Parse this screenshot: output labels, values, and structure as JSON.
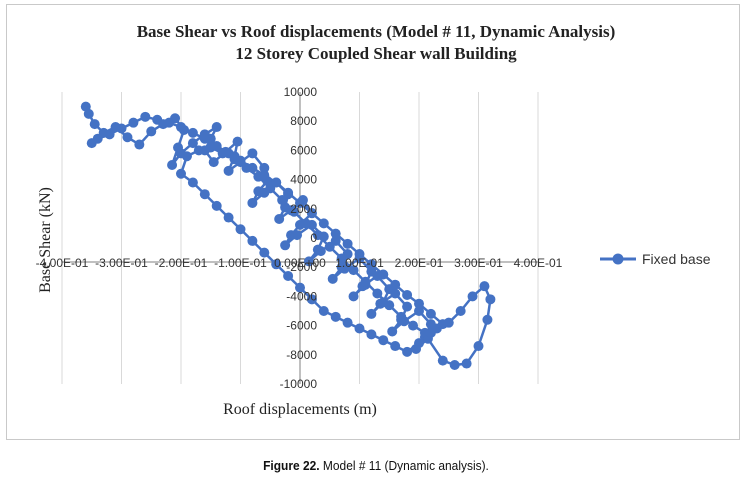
{
  "chart_data": {
    "type": "scatter",
    "title": "Base Shear vs Roof displacements (Model # 11, Dynamic Analysis)",
    "subtitle": "12 Storey Coupled Shear wall Building",
    "xlabel": "Roof displacements (m)",
    "ylabel": "Base Shear (kN)",
    "xlim": [
      -0.4,
      0.4
    ],
    "ylim": [
      -10000,
      10000
    ],
    "x_ticks": [
      -0.4,
      -0.3,
      -0.2,
      -0.1,
      0,
      0.1,
      0.2,
      0.3,
      0.4
    ],
    "x_tick_labels": [
      "-4.00E-01",
      "-3.00E-01",
      "-2.00E-01",
      "-1.00E-01",
      "0.00E+00",
      "1.00E-01",
      "2.00E-01",
      "3.00E-01",
      "4.00E-01"
    ],
    "y_ticks": [
      -10000,
      -8000,
      -6000,
      -4000,
      -2000,
      0,
      2000,
      4000,
      6000,
      8000,
      10000
    ],
    "y_tick_labels": [
      "-10000",
      "-8000",
      "-6000",
      "-4000",
      "-2000",
      "0",
      "2000",
      "4000",
      "6000",
      "8000",
      "10000"
    ],
    "grid": "vertical",
    "legend_position": "right",
    "series": [
      {
        "name": "Fixed base",
        "color": "#4472c4",
        "x": [
          -0.36,
          -0.355,
          -0.345,
          -0.33,
          -0.31,
          -0.29,
          -0.27,
          -0.25,
          -0.23,
          -0.21,
          -0.195,
          -0.205,
          -0.215,
          -0.2,
          -0.18,
          -0.16,
          -0.14,
          -0.15,
          -0.16,
          -0.145,
          -0.125,
          -0.105,
          -0.11,
          -0.12,
          -0.1,
          -0.08,
          -0.06,
          -0.055,
          -0.07,
          -0.08,
          -0.06,
          -0.04,
          -0.02,
          -0.025,
          -0.035,
          -0.015,
          0.005,
          0.02,
          0.0,
          -0.015,
          -0.025,
          -0.005,
          0.02,
          0.04,
          0.03,
          0.015,
          0.035,
          0.06,
          0.08,
          0.07,
          0.055,
          0.075,
          0.1,
          0.12,
          0.11,
          0.09,
          0.105,
          0.13,
          0.15,
          0.14,
          0.12,
          0.135,
          0.16,
          0.18,
          0.17,
          0.155,
          0.175,
          0.2,
          0.22,
          0.21,
          0.195,
          0.215,
          0.24,
          0.26,
          0.28,
          0.3,
          0.315,
          0.32,
          0.31,
          0.29,
          0.27,
          0.25,
          0.23,
          0.21,
          0.19,
          0.17,
          0.15,
          0.13,
          0.11,
          0.09,
          0.07,
          0.05,
          0.03,
          0.01,
          -0.01,
          -0.03,
          -0.05,
          -0.07,
          -0.09,
          -0.11,
          -0.13,
          -0.15,
          -0.17,
          -0.19,
          -0.2,
          -0.18,
          -0.16,
          -0.14,
          -0.12,
          -0.1,
          -0.08,
          -0.06,
          -0.04,
          -0.02,
          0.0,
          0.02,
          0.04,
          0.06,
          0.08,
          0.1,
          0.12,
          0.14,
          0.16,
          0.18,
          0.2,
          0.22,
          0.24,
          0.22,
          0.2,
          0.18,
          0.16,
          0.14,
          0.12,
          0.1,
          0.08,
          0.06,
          0.04,
          0.02,
          0.0,
          -0.02,
          -0.04,
          -0.06,
          -0.08,
          -0.1,
          -0.12,
          -0.14,
          -0.16,
          -0.18,
          -0.2,
          -0.22,
          -0.24,
          -0.26,
          -0.28,
          -0.3,
          -0.32,
          -0.34,
          -0.35
        ],
        "y": [
          9000,
          8500,
          7800,
          7200,
          7600,
          6900,
          6400,
          7300,
          7800,
          8200,
          7400,
          6200,
          5000,
          5800,
          6500,
          7100,
          7600,
          6800,
          6000,
          5200,
          5900,
          6600,
          5600,
          4600,
          5200,
          5800,
          4800,
          3900,
          3200,
          2400,
          3100,
          3800,
          3000,
          2100,
          1300,
          1900,
          2600,
          1700,
          900,
          200,
          -500,
          200,
          900,
          100,
          -800,
          -1600,
          -900,
          -200,
          -1100,
          -2000,
          -2800,
          -2100,
          -1400,
          -2300,
          -3200,
          -4000,
          -3300,
          -2600,
          -3500,
          -4400,
          -5200,
          -4500,
          -3800,
          -4700,
          -5600,
          -6400,
          -5700,
          -5000,
          -5900,
          -6800,
          -7600,
          -6900,
          -8400,
          -8700,
          -8600,
          -7400,
          -5600,
          -4200,
          -3300,
          -4000,
          -5000,
          -5800,
          -6200,
          -6500,
          -6000,
          -5400,
          -4600,
          -3800,
          -3000,
          -2200,
          -1400,
          -600,
          200,
          1000,
          1800,
          2600,
          3400,
          4200,
          4800,
          5400,
          5800,
          6200,
          6000,
          5600,
          4400,
          3800,
          3000,
          2200,
          1400,
          600,
          -200,
          -1000,
          -1800,
          -2600,
          -3400,
          -4200,
          -5000,
          -5400,
          -5800,
          -6200,
          -6600,
          -7000,
          -7400,
          -7800,
          -7200,
          -6500,
          -5900,
          -5200,
          -4500,
          -3900,
          -3200,
          -2500,
          -1800,
          -1100,
          -400,
          300,
          1000,
          1700,
          2400,
          3100,
          3800,
          4300,
          4800,
          5300,
          5800,
          6300,
          6800,
          7200,
          7600,
          7900,
          8100,
          8300,
          7900,
          7500,
          7100,
          6800,
          6500
        ]
      }
    ]
  },
  "caption": {
    "label": "Figure 22.",
    "text": " Model # 11 (Dynamic analysis)."
  }
}
